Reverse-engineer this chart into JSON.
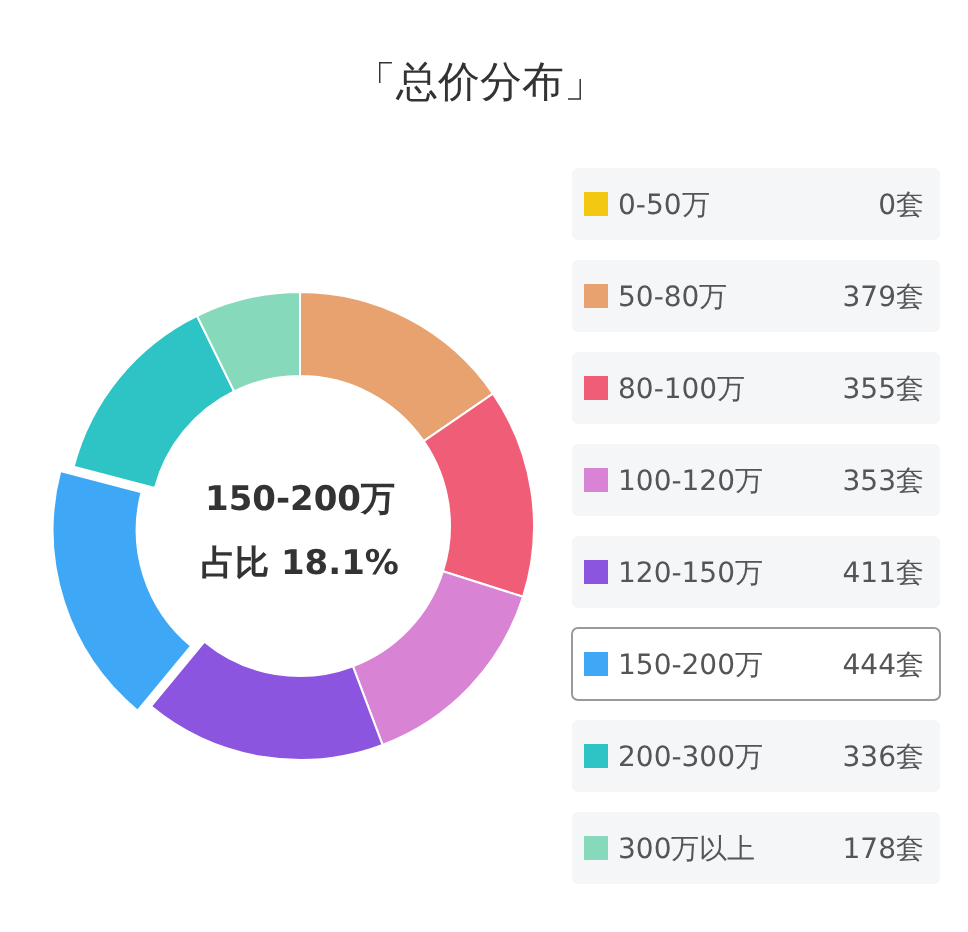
{
  "chart_data": {
    "type": "donut",
    "title": "「总价分布」",
    "categories": [
      "0-50万",
      "50-80万",
      "80-100万",
      "100-120万",
      "120-150万",
      "150-200万",
      "200-300万",
      "300万以上"
    ],
    "values": [
      0,
      379,
      355,
      353,
      411,
      444,
      336,
      178
    ],
    "value_labels": [
      "0套",
      "379套",
      "355套",
      "353套",
      "411套",
      "444套",
      "336套",
      "178套"
    ],
    "colors": [
      "#f2c812",
      "#e8a270",
      "#f05d76",
      "#d883d3",
      "#8b55e0",
      "#3fa8f6",
      "#2ec4c6",
      "#86dabb"
    ],
    "legend": "right",
    "annotations": [
      "150-200万",
      "占比 18.1%"
    ]
  }
}
